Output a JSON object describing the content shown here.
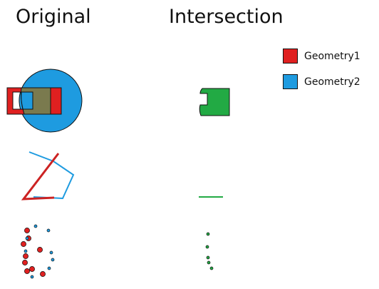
{
  "headers": {
    "original": "Original",
    "intersection": "Intersection"
  },
  "legend": [
    {
      "label": "Geometry1",
      "color": "#e02020"
    },
    {
      "label": "Geometry2",
      "color": "#1e9be0"
    }
  ],
  "colors": {
    "geometry1": "#e02020",
    "geometry2": "#1e9be0",
    "intersection": "#22aa44",
    "overlap": "#7a7a4e",
    "outline": "#111111"
  }
}
